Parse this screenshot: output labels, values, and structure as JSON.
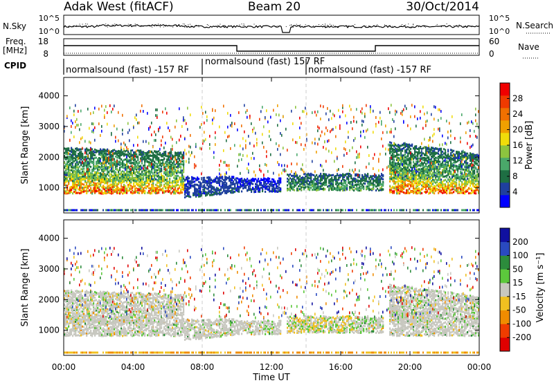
{
  "header": {
    "station": "Adak West (fitACF)",
    "beam": "Beam 20",
    "date": "30/Oct/2014"
  },
  "noise_panel": {
    "left_label": "N.Sky",
    "right_label": "N.Search",
    "ticks": [
      "10^5",
      "10^0"
    ]
  },
  "freq_panel": {
    "left_label_1": "Freq.",
    "left_label_2": "[MHz]",
    "left_ticks": [
      "18",
      "8"
    ],
    "right_label": "Nave",
    "right_ticks": [
      "60",
      "0"
    ],
    "cpid_label": "CPID"
  },
  "cpid_segments": [
    {
      "text": "normalsound (fast) -157 RF",
      "start_hour": 0
    },
    {
      "text": "normalsound (fast) 157 RF",
      "start_hour": 8
    },
    {
      "text": "normalsound (fast) -157 RF",
      "start_hour": 14
    }
  ],
  "power_panel": {
    "ylabel": "Slant Range [km]",
    "yticks": [
      "1000",
      "2000",
      "3000",
      "4000"
    ],
    "colorbar_label": "Power [dB]",
    "colorbar_ticks": [
      "4",
      "8",
      "12",
      "16",
      "20",
      "24",
      "28"
    ],
    "colors": [
      "#0000ff",
      "#1f3f9f",
      "#1e6e43",
      "#4aa86a",
      "#8cc43f",
      "#f0dc0a",
      "#f0a000",
      "#f07000",
      "#f03a00",
      "#f00000"
    ]
  },
  "velocity_panel": {
    "ylabel": "Slant Range [km]",
    "yticks": [
      "1000",
      "2000",
      "3000",
      "4000"
    ],
    "colorbar_label": "Velocity [m s⁻¹]",
    "colorbar_ticks": [
      "200",
      "100",
      "50",
      "15",
      "-15",
      "-50",
      "-100",
      "-200"
    ],
    "colors": [
      "#1010a0",
      "#2a4ac0",
      "#2c8c3c",
      "#5cc83c",
      "#c8c8c0",
      "#f0c020",
      "#f08c00",
      "#f03c00",
      "#e00000"
    ]
  },
  "xaxis": {
    "ticks": [
      "00:00",
      "04:00",
      "08:00",
      "12:00",
      "16:00",
      "20:00",
      "00:00"
    ],
    "label": "Time UT"
  },
  "chart_data": {
    "type": "heatmap",
    "x_range_hours": [
      0,
      24
    ],
    "y_range_km": [
      180,
      4600
    ],
    "power_regions": [
      {
        "t0": 0.0,
        "t1": 7.0,
        "r0": 800,
        "r1": 2300,
        "level": "high"
      },
      {
        "t0": 7.0,
        "t1": 10.0,
        "r0": 700,
        "r1": 1400,
        "level": "low"
      },
      {
        "t0": 10.0,
        "t1": 12.5,
        "r0": 900,
        "r1": 1300,
        "level": "low"
      },
      {
        "t0": 12.8,
        "t1": 18.5,
        "r0": 900,
        "r1": 1450,
        "level": "mid"
      },
      {
        "t0": 18.8,
        "t1": 24.0,
        "r0": 800,
        "r1": 2500,
        "level": "high"
      }
    ]
  }
}
